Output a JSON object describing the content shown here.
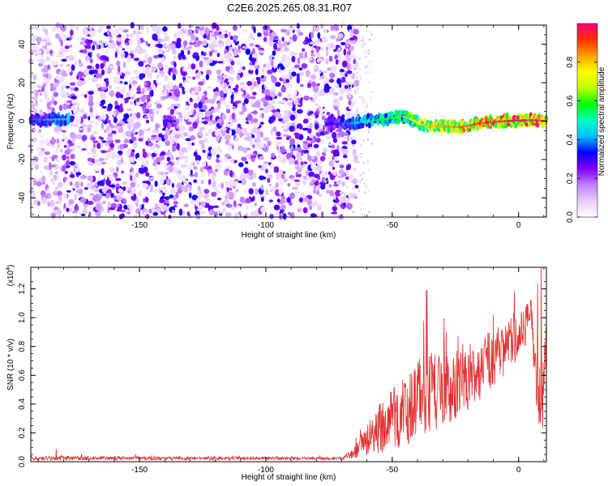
{
  "figure": {
    "title": "C2E6.2025.265.08.31.R07"
  },
  "chart_data": [
    {
      "type": "heatmap",
      "xlabel": "Height of straight line (km)",
      "ylabel": "Frequency (Hz)",
      "xlim": [
        -193,
        11
      ],
      "ylim": [
        -50,
        50
      ],
      "xticks": [
        -150,
        -100,
        -50,
        0
      ],
      "yticks": [
        -40,
        -20,
        0,
        20,
        40
      ],
      "colorbar": {
        "label": "Normalized spectral amplitude",
        "range": [
          0,
          1
        ],
        "ticks": [
          0.0,
          0.2,
          0.4,
          0.6,
          0.8
        ],
        "colors": [
          "#ffffff",
          "#e6ccff",
          "#c080ff",
          "#8000ff",
          "#0000ff",
          "#00c0ff",
          "#00ffc0",
          "#00ff00",
          "#c0ff00",
          "#ffff00",
          "#ffa000",
          "#ff3000",
          "#ff0080"
        ]
      },
      "features": {
        "noise_region_x": [
          -193,
          -68
        ],
        "signal_trace": [
          {
            "x": -193,
            "y": 0.5,
            "amp": 0.35
          },
          {
            "x": -180,
            "y": 1.0,
            "amp": 0.45
          },
          {
            "x": -75,
            "y": -1.5,
            "amp": 0.3
          },
          {
            "x": -65,
            "y": -1.0,
            "amp": 0.4
          },
          {
            "x": -55,
            "y": 0.5,
            "amp": 0.55
          },
          {
            "x": -45,
            "y": 2.5,
            "amp": 0.6
          },
          {
            "x": -38,
            "y": -2.0,
            "amp": 0.75
          },
          {
            "x": -30,
            "y": -3.0,
            "amp": 0.8
          },
          {
            "x": -22,
            "y": -3.0,
            "amp": 0.85
          },
          {
            "x": -15,
            "y": -1.0,
            "amp": 0.9
          },
          {
            "x": -5,
            "y": 0.0,
            "amp": 0.95
          },
          {
            "x": 5,
            "y": 0.5,
            "amp": 1.0
          },
          {
            "x": 11,
            "y": 0.0,
            "amp": 0.9
          }
        ]
      }
    },
    {
      "type": "line",
      "xlabel": "Height of straight line (km)",
      "ylabel": "SNR (10 * v/v)",
      "scale_label": "(x10",
      "scale_exponent": "4",
      "scale_suffix": ")",
      "xlim": [
        -193,
        11
      ],
      "ylim": [
        0,
        1.35
      ],
      "xticks": [
        -150,
        -100,
        -50,
        0
      ],
      "yticks": [
        0.0,
        0.2,
        0.4,
        0.6,
        0.8,
        1.0,
        1.2
      ],
      "series": [
        {
          "color": "#e03030",
          "envelope": [
            {
              "x": -193,
              "base": 0.02,
              "amp": 0.03
            },
            {
              "x": -70,
              "base": 0.02,
              "amp": 0.02
            },
            {
              "x": -65,
              "base": 0.05,
              "amp": 0.08
            },
            {
              "x": -55,
              "base": 0.18,
              "amp": 0.35
            },
            {
              "x": -45,
              "base": 0.28,
              "amp": 0.5
            },
            {
              "x": -38,
              "base": 0.4,
              "amp": 0.6
            },
            {
              "x": -30,
              "base": 0.42,
              "amp": 0.55
            },
            {
              "x": -20,
              "base": 0.5,
              "amp": 0.45
            },
            {
              "x": -10,
              "base": 0.65,
              "amp": 0.4
            },
            {
              "x": 0,
              "base": 0.82,
              "amp": 0.35
            },
            {
              "x": 5,
              "base": 0.95,
              "amp": 0.3
            },
            {
              "x": 8,
              "base": 0.35,
              "amp": 0.6
            },
            {
              "x": 11,
              "base": 0.7,
              "amp": 0.4
            }
          ],
          "peaks": [
            {
              "x": -36.5,
              "y": 1.19
            },
            {
              "x": -37.5,
              "y": 0.98
            },
            {
              "x": -24,
              "y": 0.87
            },
            {
              "x": -10,
              "y": 1.02
            },
            {
              "x": 7.5,
              "y": 1.24
            },
            {
              "x": 9,
              "y": 1.35
            },
            {
              "x": -183,
              "y": 0.09
            },
            {
              "x": 9.5,
              "y": 0.23
            }
          ]
        }
      ]
    }
  ]
}
